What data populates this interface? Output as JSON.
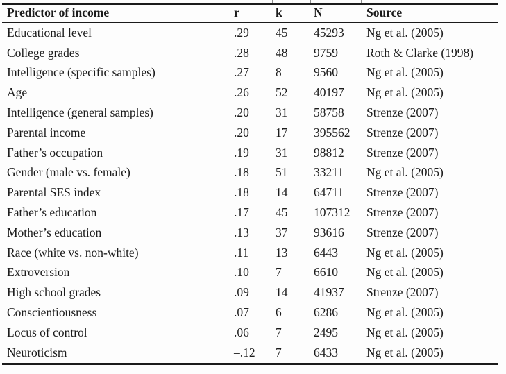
{
  "table": {
    "title_semantic": "Predictors of income meta-analytic correlations",
    "columns": [
      "Predictor of income",
      "r",
      "k",
      "N",
      "Source"
    ],
    "rows": [
      [
        "Educational level",
        ".29",
        "45",
        "45293",
        "Ng et al. (2005)"
      ],
      [
        "College grades",
        ".28",
        "48",
        "9759",
        "Roth & Clarke (1998)"
      ],
      [
        "Intelligence (specific samples)",
        ".27",
        "8",
        "9560",
        "Ng et al. (2005)"
      ],
      [
        "Age",
        ".26",
        "52",
        "40197",
        "Ng et al. (2005)"
      ],
      [
        "Intelligence (general samples)",
        ".20",
        "31",
        "58758",
        "Strenze (2007)"
      ],
      [
        "Parental income",
        ".20",
        "17",
        "395562",
        "Strenze (2007)"
      ],
      [
        "Father’s occupation",
        ".19",
        "31",
        "98812",
        "Strenze (2007)"
      ],
      [
        "Gender (male vs. female)",
        ".18",
        "51",
        "33211",
        "Ng et al. (2005)"
      ],
      [
        "Parental SES index",
        ".18",
        "14",
        "64711",
        "Strenze (2007)"
      ],
      [
        "Father’s education",
        ".17",
        "45",
        "107312",
        "Strenze (2007)"
      ],
      [
        "Mother’s education",
        ".13",
        "37",
        "93616",
        "Strenze (2007)"
      ],
      [
        "Race (white vs. non-white)",
        ".11",
        "13",
        "6443",
        "Ng et al. (2005)"
      ],
      [
        "Extroversion",
        ".10",
        "7",
        "6610",
        "Ng et al. (2005)"
      ],
      [
        "High school grades",
        ".09",
        "14",
        "41937",
        "Strenze (2007)"
      ],
      [
        "Conscientiousness",
        ".07",
        "6",
        "6286",
        "Ng et al. (2005)"
      ],
      [
        "Locus of control",
        ".06",
        "7",
        "2495",
        "Ng et al. (2005)"
      ],
      [
        "Neuroticism",
        "–.12",
        "7",
        "6433",
        "Ng et al. (2005)"
      ]
    ]
  }
}
